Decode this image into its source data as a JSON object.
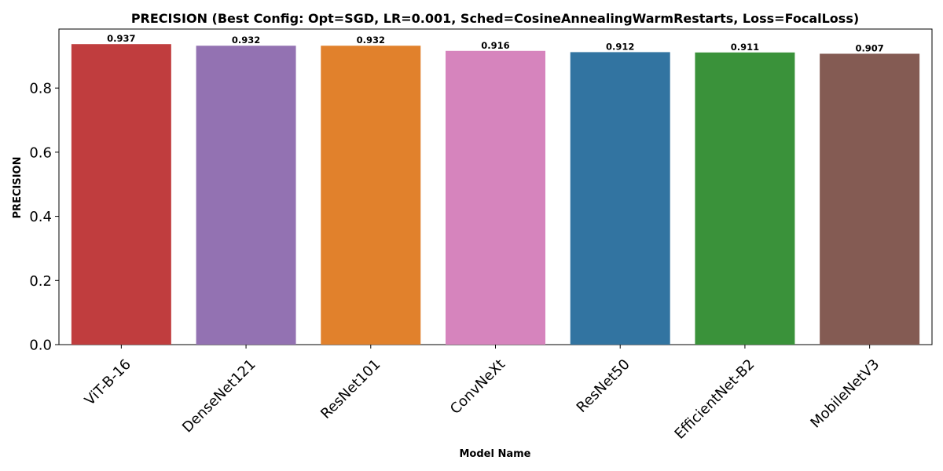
{
  "chart_data": {
    "type": "bar",
    "title": "PRECISION (Best Config: Opt=SGD, LR=0.001, Sched=CosineAnnealingWarmRestarts, Loss=FocalLoss)",
    "xlabel": "Model Name",
    "ylabel": "PRECISION",
    "categories": [
      "ViT-B-16",
      "DenseNet121",
      "ResNet101",
      "ConvNeXt",
      "ResNet50",
      "EfficientNet-B2",
      "MobileNetV3"
    ],
    "values": [
      0.937,
      0.932,
      0.932,
      0.916,
      0.912,
      0.911,
      0.907
    ],
    "value_labels": [
      "0.937",
      "0.932",
      "0.932",
      "0.916",
      "0.912",
      "0.911",
      "0.907"
    ],
    "colors": [
      "#c03d3e",
      "#9372b2",
      "#e1812c",
      "#d684bd",
      "#3274a1",
      "#3a923a",
      "#845b53"
    ],
    "ylim": [
      0,
      0.984
    ],
    "yticks": [
      0.0,
      0.2,
      0.4,
      0.6,
      0.8
    ],
    "ytick_labels": [
      "0.0",
      "0.2",
      "0.4",
      "0.6",
      "0.8"
    ],
    "grid": false,
    "legend": "none"
  }
}
